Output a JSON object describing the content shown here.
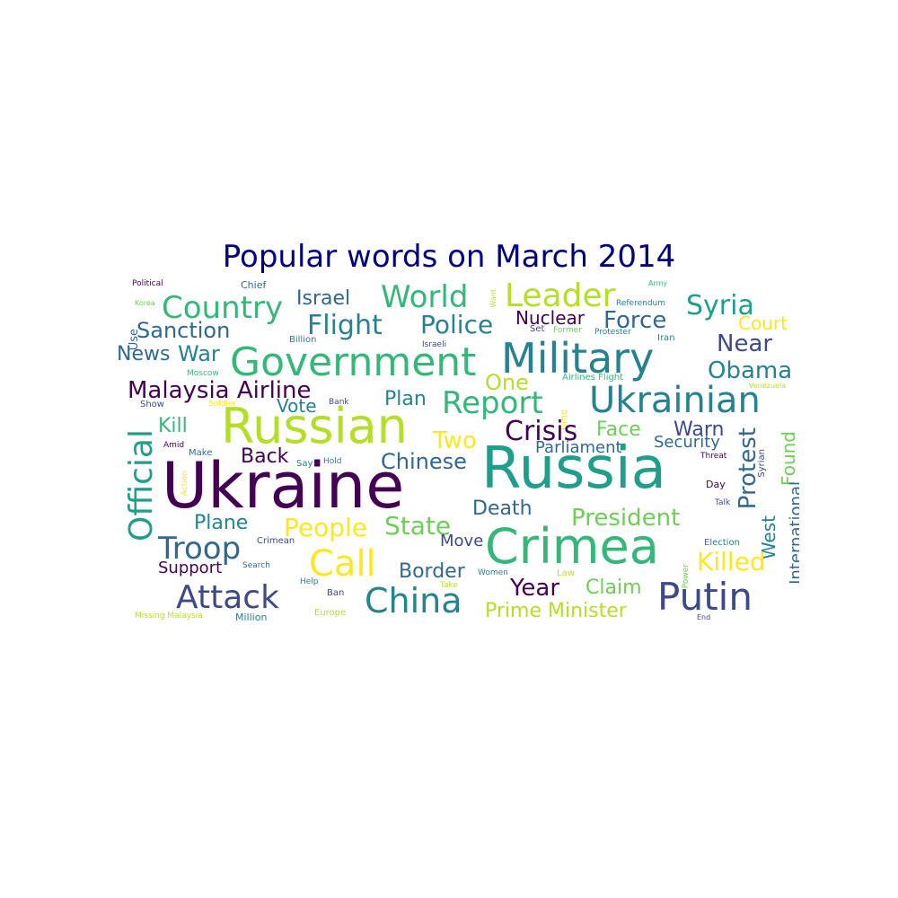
{
  "title": "Popular words on March 2014",
  "palette": {
    "dark_purple": "#440154",
    "indigo": "#3e4989",
    "blue": "#31688e",
    "teal": "#26828e",
    "sea": "#1f9e89",
    "green": "#35b779",
    "light_green": "#6ece58",
    "lime": "#b5de2b",
    "yellow": "#fde725"
  },
  "words": [
    {
      "text": "Political",
      "color": "#440154"
    },
    {
      "text": "Chief",
      "color": "#31688e"
    },
    {
      "text": "Want",
      "color": "#b5de2b"
    },
    {
      "text": "Army",
      "color": "#35b779"
    },
    {
      "text": "Use",
      "color": "#31688e"
    },
    {
      "text": "Korea",
      "color": "#6ece58"
    },
    {
      "text": "Country",
      "color": "#35b779"
    },
    {
      "text": "Israel",
      "color": "#31688e"
    },
    {
      "text": "World",
      "color": "#35b779"
    },
    {
      "text": "Leader",
      "color": "#b5de2b"
    },
    {
      "text": "Referendum",
      "color": "#26828e"
    },
    {
      "text": "Syria",
      "color": "#1f9e89"
    },
    {
      "text": "Sanction",
      "color": "#31688e"
    },
    {
      "text": "Flight",
      "color": "#26828e"
    },
    {
      "text": "Police",
      "color": "#26828e"
    },
    {
      "text": "Nuclear",
      "color": "#440154"
    },
    {
      "text": "Force",
      "color": "#31688e"
    },
    {
      "text": "Court",
      "color": "#fde725"
    },
    {
      "text": "Billion",
      "color": "#26828e"
    },
    {
      "text": "Set",
      "color": "#3e4989"
    },
    {
      "text": "Former",
      "color": "#6ece58"
    },
    {
      "text": "Protester",
      "color": "#26828e"
    },
    {
      "text": "Iran",
      "color": "#26828e"
    },
    {
      "text": "Israeli",
      "color": "#3e4989"
    },
    {
      "text": "News",
      "color": "#31688e"
    },
    {
      "text": "War",
      "color": "#26828e"
    },
    {
      "text": "Government",
      "color": "#35b779"
    },
    {
      "text": "Military",
      "color": "#26828e"
    },
    {
      "text": "Near",
      "color": "#3e4989"
    },
    {
      "text": "Moscow",
      "color": "#35b779"
    },
    {
      "text": "Obama",
      "color": "#26828e"
    },
    {
      "text": "Airlines Flight",
      "color": "#35b779"
    },
    {
      "text": "Venezuela",
      "color": "#b5de2b"
    },
    {
      "text": "Malaysia Airline",
      "color": "#440154"
    },
    {
      "text": "One",
      "color": "#b5de2b"
    },
    {
      "text": "Plan",
      "color": "#26828e"
    },
    {
      "text": "Bank",
      "color": "#3e4989"
    },
    {
      "text": "Show",
      "color": "#3e4989"
    },
    {
      "text": "Soldier",
      "color": "#fde725"
    },
    {
      "text": "Vote",
      "color": "#26828e"
    },
    {
      "text": "Report",
      "color": "#35b779"
    },
    {
      "text": "Ukrainian",
      "color": "#26828e"
    },
    {
      "text": "Time",
      "color": "#fde725"
    },
    {
      "text": "Kill",
      "color": "#35b779"
    },
    {
      "text": "Russian",
      "color": "#b5de2b"
    },
    {
      "text": "Official",
      "color": "#1f9e89"
    },
    {
      "text": "Two",
      "color": "#fde725"
    },
    {
      "text": "Crisis",
      "color": "#440154"
    },
    {
      "text": "Face",
      "color": "#6ece58"
    },
    {
      "text": "Warn",
      "color": "#3e4989"
    },
    {
      "text": "Security",
      "color": "#31688e"
    },
    {
      "text": "Found",
      "color": "#6ece58"
    },
    {
      "text": "Amid",
      "color": "#440154"
    },
    {
      "text": "Make",
      "color": "#31688e"
    },
    {
      "text": "Parliament",
      "color": "#31688e"
    },
    {
      "text": "Back",
      "color": "#440154"
    },
    {
      "text": "Say",
      "color": "#26828e"
    },
    {
      "text": "Hold",
      "color": "#26828e"
    },
    {
      "text": "Chinese",
      "color": "#31688e"
    },
    {
      "text": "Threat",
      "color": "#440154"
    },
    {
      "text": "Protest",
      "color": "#31688e"
    },
    {
      "text": "Syrian",
      "color": "#3e4989"
    },
    {
      "text": "Ukraine",
      "color": "#440154"
    },
    {
      "text": "Russia",
      "color": "#1f9e89"
    },
    {
      "text": "Action",
      "color": "#fde725"
    },
    {
      "text": "Day",
      "color": "#440154"
    },
    {
      "text": "Death",
      "color": "#31688e"
    },
    {
      "text": "Talk",
      "color": "#3e4989"
    },
    {
      "text": "Plane",
      "color": "#26828e"
    },
    {
      "text": "People",
      "color": "#fde725"
    },
    {
      "text": "State",
      "color": "#6ece58"
    },
    {
      "text": "President",
      "color": "#6ece58"
    },
    {
      "text": "International",
      "color": "#31688e"
    },
    {
      "text": "West",
      "color": "#26828e"
    },
    {
      "text": "Troop",
      "color": "#31688e"
    },
    {
      "text": "Crimean",
      "color": "#3e4989"
    },
    {
      "text": "Move",
      "color": "#3e4989"
    },
    {
      "text": "Crimea",
      "color": "#35b779"
    },
    {
      "text": "Election",
      "color": "#26828e"
    },
    {
      "text": "Support",
      "color": "#440154"
    },
    {
      "text": "Search",
      "color": "#31688e"
    },
    {
      "text": "Call",
      "color": "#fde725"
    },
    {
      "text": "Border",
      "color": "#31688e"
    },
    {
      "text": "Women",
      "color": "#26828e"
    },
    {
      "text": "Law",
      "color": "#b5de2b"
    },
    {
      "text": "Power",
      "color": "#6ece58"
    },
    {
      "text": "Killed",
      "color": "#fde725"
    },
    {
      "text": "Help",
      "color": "#26828e"
    },
    {
      "text": "Ban",
      "color": "#3e4989"
    },
    {
      "text": "Take",
      "color": "#b5de2b"
    },
    {
      "text": "Attack",
      "color": "#3e4989"
    },
    {
      "text": "China",
      "color": "#26828e"
    },
    {
      "text": "Year",
      "color": "#440154"
    },
    {
      "text": "Claim",
      "color": "#6ece58"
    },
    {
      "text": "Putin",
      "color": "#3e4989"
    },
    {
      "text": "Missing Malaysia",
      "color": "#b5de2b"
    },
    {
      "text": "Million",
      "color": "#26828e"
    },
    {
      "text": "Europe",
      "color": "#b5de2b"
    },
    {
      "text": "Prime Minister",
      "color": "#b5de2b"
    },
    {
      "text": "End",
      "color": "#3e4989"
    }
  ]
}
